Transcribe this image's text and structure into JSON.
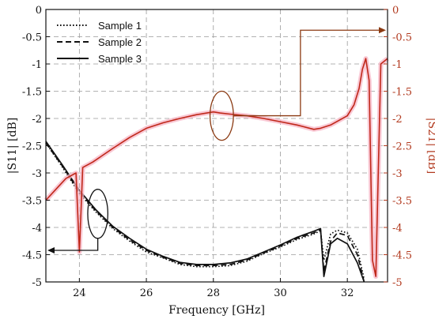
{
  "chart_data": {
    "type": "line",
    "xlabel": "Frequency [GHz]",
    "ylabel_left": "|S11| [dB]",
    "ylabel_right": "|S21| [dB]",
    "xlim": [
      23,
      33.2
    ],
    "ylim_left": [
      -5,
      0
    ],
    "ylim_right": [
      -5,
      0
    ],
    "x_ticks": [
      24,
      26,
      28,
      30,
      32
    ],
    "y_ticks": [
      0,
      -0.5,
      -1,
      -1.5,
      -2,
      -2.5,
      -3,
      -3.5,
      -4,
      -4.5,
      -5
    ],
    "y_tick_labels": [
      "0",
      "-0.5",
      "-1",
      "-1.5",
      "-2",
      "-2.5",
      "-3",
      "-3.5",
      "-4",
      "-4.5",
      "-5"
    ],
    "grid": true,
    "legend_position": "top-left",
    "colors": {
      "s11": "#111111",
      "s21": "#c0281a",
      "s21_shadow": "#f7b6c6",
      "right_axis": "#b23a1f",
      "arrow_right": "#8b3a12"
    },
    "series": [
      {
        "name": "Sample 1",
        "axis": "left",
        "quantity": "S11",
        "dash": "1.6 2.4",
        "x": [
          23,
          23.5,
          24,
          24.5,
          25,
          25.5,
          26,
          26.5,
          27,
          27.5,
          28,
          28.5,
          29,
          29.5,
          30,
          30.5,
          31,
          31.2,
          31.3,
          31.5,
          31.7,
          32,
          32.3,
          32.5
        ],
        "y": [
          -2.45,
          -2.9,
          -3.38,
          -3.72,
          -4.02,
          -4.25,
          -4.45,
          -4.56,
          -4.68,
          -4.72,
          -4.72,
          -4.7,
          -4.62,
          -4.48,
          -4.36,
          -4.22,
          -4.12,
          -4.06,
          -4.6,
          -4.12,
          -4.05,
          -4.1,
          -4.4,
          -4.95
        ]
      },
      {
        "name": "Sample 2",
        "axis": "left",
        "quantity": "S11",
        "dash": "7 4",
        "x": [
          23,
          23.5,
          24,
          24.5,
          25,
          25.5,
          26,
          26.5,
          27,
          27.5,
          28,
          28.5,
          29,
          29.5,
          30,
          30.5,
          31,
          31.2,
          31.3,
          31.5,
          31.7,
          32,
          32.3,
          32.5
        ],
        "y": [
          -2.45,
          -2.88,
          -3.35,
          -3.7,
          -4.0,
          -4.23,
          -4.42,
          -4.55,
          -4.66,
          -4.7,
          -4.7,
          -4.68,
          -4.6,
          -4.47,
          -4.34,
          -4.2,
          -4.1,
          -4.04,
          -4.8,
          -4.25,
          -4.1,
          -4.15,
          -4.5,
          -5.0
        ]
      },
      {
        "name": "Sample 3",
        "axis": "left",
        "quantity": "S11",
        "dash": "",
        "x": [
          23,
          23.5,
          24,
          24.5,
          25,
          25.5,
          26,
          26.5,
          27,
          27.5,
          28,
          28.5,
          29,
          29.5,
          30,
          30.5,
          31,
          31.2,
          31.3,
          31.5,
          31.7,
          32,
          32.3,
          32.5
        ],
        "y": [
          -2.42,
          -2.86,
          -3.32,
          -3.68,
          -3.98,
          -4.2,
          -4.4,
          -4.53,
          -4.64,
          -4.68,
          -4.68,
          -4.65,
          -4.58,
          -4.45,
          -4.32,
          -4.18,
          -4.07,
          -4.02,
          -4.9,
          -4.3,
          -4.2,
          -4.3,
          -4.65,
          -5.0
        ]
      },
      {
        "name": "",
        "axis": "right",
        "quantity": "S21",
        "x": [
          23,
          23.3,
          23.6,
          23.9,
          24.0,
          24.1,
          24.4,
          25,
          25.5,
          26,
          26.5,
          27,
          27.5,
          28,
          28.2,
          28.5,
          29,
          29.5,
          30,
          30.5,
          31,
          31.2,
          31.5,
          32,
          32.2,
          32.35,
          32.45,
          32.55,
          32.65,
          32.75,
          32.85,
          33.0,
          33.2
        ],
        "y": [
          -3.5,
          -3.3,
          -3.1,
          -3.0,
          -4.45,
          -2.9,
          -2.8,
          -2.55,
          -2.35,
          -2.18,
          -2.08,
          -2.0,
          -1.93,
          -1.88,
          -1.9,
          -1.92,
          -1.95,
          -2.0,
          -2.06,
          -2.12,
          -2.2,
          -2.18,
          -2.12,
          -1.95,
          -1.75,
          -1.45,
          -1.1,
          -0.9,
          -1.3,
          -4.6,
          -4.9,
          -1.0,
          -0.9
        ]
      }
    ],
    "annotations": [
      {
        "type": "ellipse",
        "cx": 24.55,
        "cy": -3.75,
        "rx": 0.3,
        "ry": 0.45,
        "color": "#111111",
        "arrow_to": "left",
        "arrow_at_y": -4.42
      },
      {
        "type": "ellipse",
        "cx": 28.25,
        "cy": -1.95,
        "rx": 0.35,
        "ry": 0.45,
        "color": "#8b3a12",
        "arrow_to": "right",
        "arrow_at_y": -0.38
      }
    ]
  },
  "legend": [
    {
      "label": "Sample 1"
    },
    {
      "label": "Sample 2"
    },
    {
      "label": "Sample 3"
    }
  ]
}
